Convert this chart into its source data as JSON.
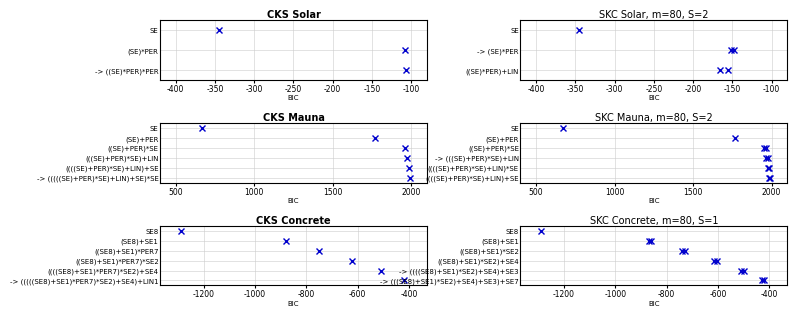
{
  "plots": [
    {
      "title": "CKS Solar",
      "title_bold": true,
      "labels": [
        "SE",
        "(SE)*PER",
        "-> ((SE)*PER)*PER"
      ],
      "multi_values": [
        [
          -345
        ],
        [
          -108
        ],
        [
          -107
        ]
      ],
      "xlim": [
        -420,
        -80
      ],
      "xticks": [
        -400,
        -350,
        -300,
        -250,
        -200,
        -150,
        -100
      ]
    },
    {
      "title": "SKC Solar, m=80, S=2",
      "title_bold": false,
      "labels": [
        "SE",
        "-> (SE)*PER",
        "((SE)*PER)+LIN"
      ],
      "multi_values": [
        [
          -345
        ],
        [
          -152,
          -148
        ],
        [
          -165,
          -155
        ]
      ],
      "xlim": [
        -420,
        -80
      ],
      "xticks": [
        -400,
        -350,
        -300,
        -250,
        -200,
        -150,
        -100
      ]
    },
    {
      "title": "CKS Mauna",
      "title_bold": true,
      "labels": [
        "SE",
        "(SE)+PER",
        "((SE)+PER)*SE",
        "(((SE)+PER)*SE)+LIN",
        "((((SE)+PER)*SE)+LIN)+SE",
        "-> (((((SE)+PER)*SE)+LIN)+SE)*SE"
      ],
      "multi_values": [
        [
          670
        ],
        [
          1770
        ],
        [
          1960
        ],
        [
          1975
        ],
        [
          1985
        ],
        [
          1995
        ]
      ],
      "xlim": [
        400,
        2100
      ],
      "xticks": [
        500,
        1000,
        1500,
        2000
      ]
    },
    {
      "title": "SKC Mauna, m=80, S=2",
      "title_bold": false,
      "labels": [
        "SE",
        "(SE)+PER",
        "((SE)+PER)*SE",
        "-> (((SE)+PER)*SE)+LIN",
        "((((SE)+PER)*SE)+LIN)*SE",
        "((((SE)+PER)*SE)+LIN)+SE"
      ],
      "multi_values": [
        [
          670
        ],
        [
          1770
        ],
        [
          1955,
          1965
        ],
        [
          1968,
          1978
        ],
        [
          1975,
          1985
        ],
        [
          1982,
          1992
        ]
      ],
      "xlim": [
        400,
        2100
      ],
      "xticks": [
        500,
        1000,
        1500,
        2000
      ]
    },
    {
      "title": "CKS Concrete",
      "title_bold": true,
      "labels": [
        "SE8",
        "(SE8)+SE1",
        "((SE8)+SE1)*PER7",
        "((SE8)+SE1)*PER7)*SE2",
        "((((SE8)+SE1)*PER7)*SE2)+SE4",
        "-> (((((SE8)+SE1)*PER7)*SE2)+SE4)+LIN1"
      ],
      "multi_values": [
        [
          -1290
        ],
        [
          -880
        ],
        [
          -750
        ],
        [
          -620
        ],
        [
          -510
        ],
        [
          -420
        ]
      ],
      "xlim": [
        -1370,
        -330
      ],
      "xticks": [
        -1200,
        -1000,
        -800,
        -600,
        -400
      ]
    },
    {
      "title": "SKC Concrete, m=80, S=1",
      "title_bold": false,
      "labels": [
        "SE8",
        "(SE8)+SE1",
        "((SE8)+SE1)*SE2",
        "((SE8)+SE1)*SE2)+SE4",
        "-> ((((SE8)+SE1)*SE2)+SE4)+SE3",
        "-> (((SE8)+SE1)*SE2)+SE4)+SE3)+SE7"
      ],
      "multi_values": [
        [
          -1290
        ],
        [
          -870,
          -860
        ],
        [
          -740,
          -730
        ],
        [
          -615,
          -605
        ],
        [
          -510,
          -500
        ],
        [
          -430,
          -420
        ]
      ],
      "xlim": [
        -1370,
        -330
      ],
      "xticks": [
        -1200,
        -1000,
        -800,
        -600,
        -400
      ]
    }
  ],
  "marker_color": "#0000cc",
  "marker_size": 4,
  "marker_ew": 1.0,
  "grid_color": "#cccccc",
  "label_fontsize": 5.0,
  "title_fontsize": 7,
  "tick_fontsize": 5.5,
  "xlabel": "BIC"
}
